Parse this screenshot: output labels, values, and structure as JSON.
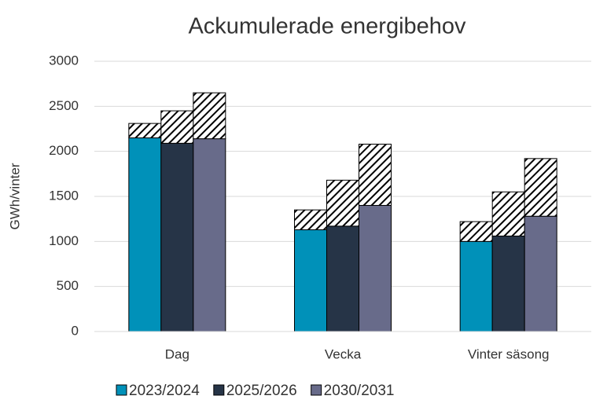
{
  "chart_data": {
    "type": "bar",
    "title": "Ackumulerade energibehov",
    "y_label": "GWh/vinter",
    "categories": [
      "Dag",
      "Vecka",
      "Vinter säsong"
    ],
    "series": [
      {
        "name": "2023/2024",
        "color": "#0091b9",
        "values": [
          2150,
          1130,
          1000
        ],
        "hatch_values": [
          160,
          220,
          220
        ]
      },
      {
        "name": "2025/2026",
        "color": "#263447",
        "values": [
          2090,
          1170,
          1060
        ],
        "hatch_values": [
          360,
          510,
          490
        ]
      },
      {
        "name": "2030/2031",
        "color": "#686b8a",
        "values": [
          2140,
          1400,
          1280
        ],
        "hatch_values": [
          510,
          680,
          640
        ]
      }
    ],
    "ylim": [
      0,
      3000
    ],
    "yticks": [
      0,
      500,
      1000,
      1500,
      2000,
      2500,
      3000
    ],
    "grid": true,
    "legend": "bottom"
  }
}
